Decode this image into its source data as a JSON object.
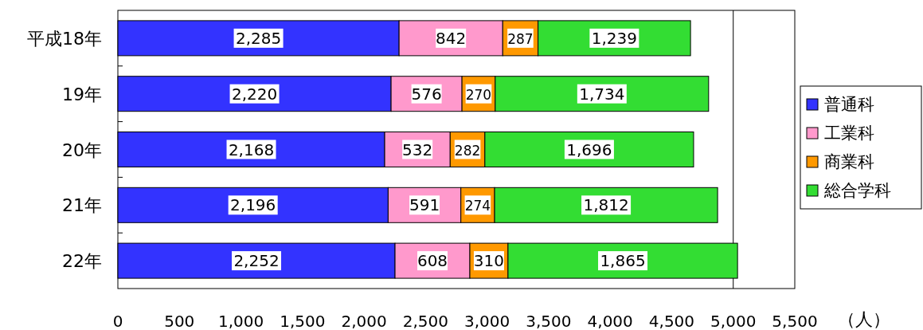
{
  "chart_data": {
    "type": "bar",
    "orientation": "horizontal",
    "stacked": true,
    "categories": [
      "平成18年",
      "19年",
      "20年",
      "21年",
      "22年"
    ],
    "series": [
      {
        "name": "普通科",
        "color": "#3333ff",
        "values": [
          2285,
          2220,
          2168,
          2196,
          2252
        ],
        "value_labels": [
          "2,285",
          "2,220",
          "2,168",
          "2,196",
          "2,252"
        ]
      },
      {
        "name": "工業科",
        "color": "#ff99cc",
        "values": [
          842,
          576,
          532,
          591,
          608
        ],
        "value_labels": [
          "842",
          "576",
          "532",
          "591",
          "608"
        ]
      },
      {
        "name": "商業科",
        "color": "#ff9900",
        "values": [
          287,
          270,
          282,
          274,
          310
        ],
        "value_labels": [
          "287",
          "270",
          "282",
          "274",
          "310"
        ]
      },
      {
        "name": "総合学科",
        "color": "#33dd33",
        "values": [
          1239,
          1734,
          1696,
          1812,
          1865
        ],
        "value_labels": [
          "1,239",
          "1,734",
          "1,696",
          "1,812",
          "1,865"
        ]
      }
    ],
    "xlabel": "（人）",
    "xlim": [
      0,
      5500
    ],
    "xticks": [
      0,
      {
        "value": 500,
        "label": "500"
      },
      {
        "value": 1000,
        "label": "1,000"
      },
      {
        "value": 1500,
        "label": "1,500"
      },
      {
        "value": 2000,
        "label": "2,000"
      },
      {
        "value": 2500,
        "label": "2,500"
      },
      {
        "value": 3000,
        "label": "3,000"
      },
      {
        "value": 3500,
        "label": "3,500"
      },
      {
        "value": 4000,
        "label": "4,000"
      },
      {
        "value": 4500,
        "label": "4,500"
      },
      {
        "value": 5000,
        "label": "5,000"
      },
      {
        "value": 5500,
        "label": "5,500"
      }
    ],
    "ref_lines": [
      {
        "axis": "x",
        "value": 5000,
        "color": "#000000"
      }
    ],
    "legend": "right"
  }
}
